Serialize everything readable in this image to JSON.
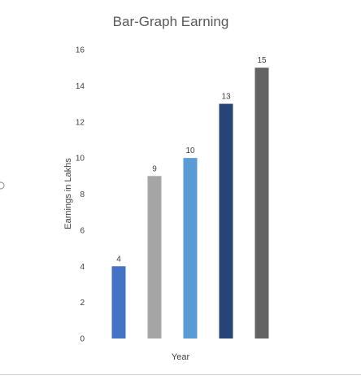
{
  "chart_data": {
    "type": "bar",
    "title": "Bar-Graph Earning",
    "xlabel": "Year",
    "ylabel": "Earnings in Lakhs",
    "categories": [
      "",
      "",
      "",
      "",
      ""
    ],
    "values": [
      4,
      9,
      10,
      13,
      15
    ],
    "data_labels": [
      "4",
      "9",
      "10",
      "13",
      "15"
    ],
    "ylim": [
      0,
      16
    ],
    "yticks": [
      0,
      2,
      4,
      6,
      8,
      10,
      12,
      14,
      16
    ],
    "colors": [
      "#4472C4",
      "#A5A5A5",
      "#5B9BD5",
      "#264478",
      "#636363"
    ],
    "grid": false,
    "legend": "none"
  }
}
